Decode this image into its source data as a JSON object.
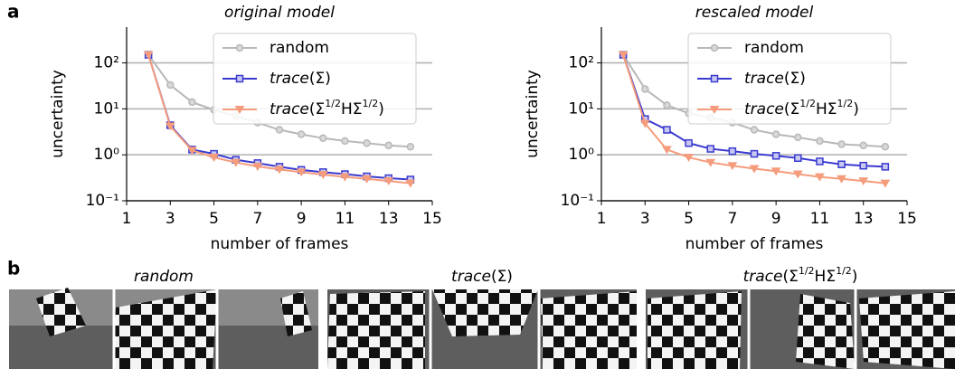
{
  "panel_a": {
    "label": "a"
  },
  "chart_data": [
    {
      "type": "line",
      "title": "original model",
      "xlabel": "number of frames",
      "ylabel": "uncertainty",
      "log_y": true,
      "grid": true,
      "legend": "upper right",
      "xlim": [
        1,
        15
      ],
      "xticks": [
        1,
        3,
        5,
        7,
        9,
        11,
        13,
        15
      ],
      "ylim": [
        0.1,
        600
      ],
      "yticks": [
        {
          "value": 0.1,
          "label": "10⁻¹"
        },
        {
          "value": 1,
          "label": "10⁰"
        },
        {
          "value": 10,
          "label": "10¹"
        },
        {
          "value": 100,
          "label": "10²"
        }
      ],
      "x": [
        2,
        3,
        4,
        5,
        6,
        7,
        8,
        9,
        10,
        11,
        12,
        13,
        14
      ],
      "series": [
        {
          "name": "random",
          "color": "#b8b8b8",
          "marker": "circle",
          "values": [
            150,
            33,
            14,
            9.5,
            7,
            5,
            3.5,
            2.8,
            2.3,
            2.0,
            1.8,
            1.6,
            1.5
          ]
        },
        {
          "name": "trace(Σ)",
          "color": "#3a3ad0",
          "marker": "square",
          "values": [
            150,
            4.4,
            1.3,
            1.05,
            0.78,
            0.66,
            0.55,
            0.47,
            0.42,
            0.38,
            0.34,
            0.31,
            0.29
          ]
        },
        {
          "name": "trace(Σ1/2HΣ1/2)",
          "color": "#f59c7c",
          "marker": "triangle",
          "values": [
            150,
            4.2,
            1.25,
            0.88,
            0.68,
            0.56,
            0.48,
            0.42,
            0.37,
            0.33,
            0.3,
            0.27,
            0.24
          ]
        }
      ]
    },
    {
      "type": "line",
      "title": "rescaled model",
      "xlabel": "number of frames",
      "ylabel": "uncertainty",
      "log_y": true,
      "grid": true,
      "legend": "upper right",
      "xlim": [
        1,
        15
      ],
      "xticks": [
        1,
        3,
        5,
        7,
        9,
        11,
        13,
        15
      ],
      "ylim": [
        0.1,
        600
      ],
      "yticks": [
        {
          "value": 0.1,
          "label": "10⁻¹"
        },
        {
          "value": 1,
          "label": "10⁰"
        },
        {
          "value": 10,
          "label": "10¹"
        },
        {
          "value": 100,
          "label": "10²"
        }
      ],
      "x": [
        2,
        3,
        4,
        5,
        6,
        7,
        8,
        9,
        10,
        11,
        12,
        13,
        14
      ],
      "series": [
        {
          "name": "random",
          "color": "#b8b8b8",
          "marker": "circle",
          "values": [
            150,
            27,
            12,
            8,
            6.5,
            5,
            3.5,
            2.8,
            2.4,
            2.0,
            1.7,
            1.6,
            1.5
          ]
        },
        {
          "name": "trace(Σ)",
          "color": "#3a3ad0",
          "marker": "square",
          "values": [
            150,
            6,
            3.5,
            1.8,
            1.35,
            1.2,
            1.05,
            0.95,
            0.85,
            0.72,
            0.62,
            0.58,
            0.55
          ]
        },
        {
          "name": "trace(Σ1/2HΣ1/2)",
          "color": "#f59c7c",
          "marker": "triangle",
          "values": [
            150,
            4.8,
            1.3,
            0.88,
            0.68,
            0.58,
            0.5,
            0.44,
            0.38,
            0.33,
            0.3,
            0.27,
            0.24
          ]
        }
      ]
    }
  ],
  "panel_b": {
    "label": "b",
    "captions": [
      "random",
      "trace(Σ)",
      "trace(Σ1/2HΣ1/2)"
    ]
  }
}
